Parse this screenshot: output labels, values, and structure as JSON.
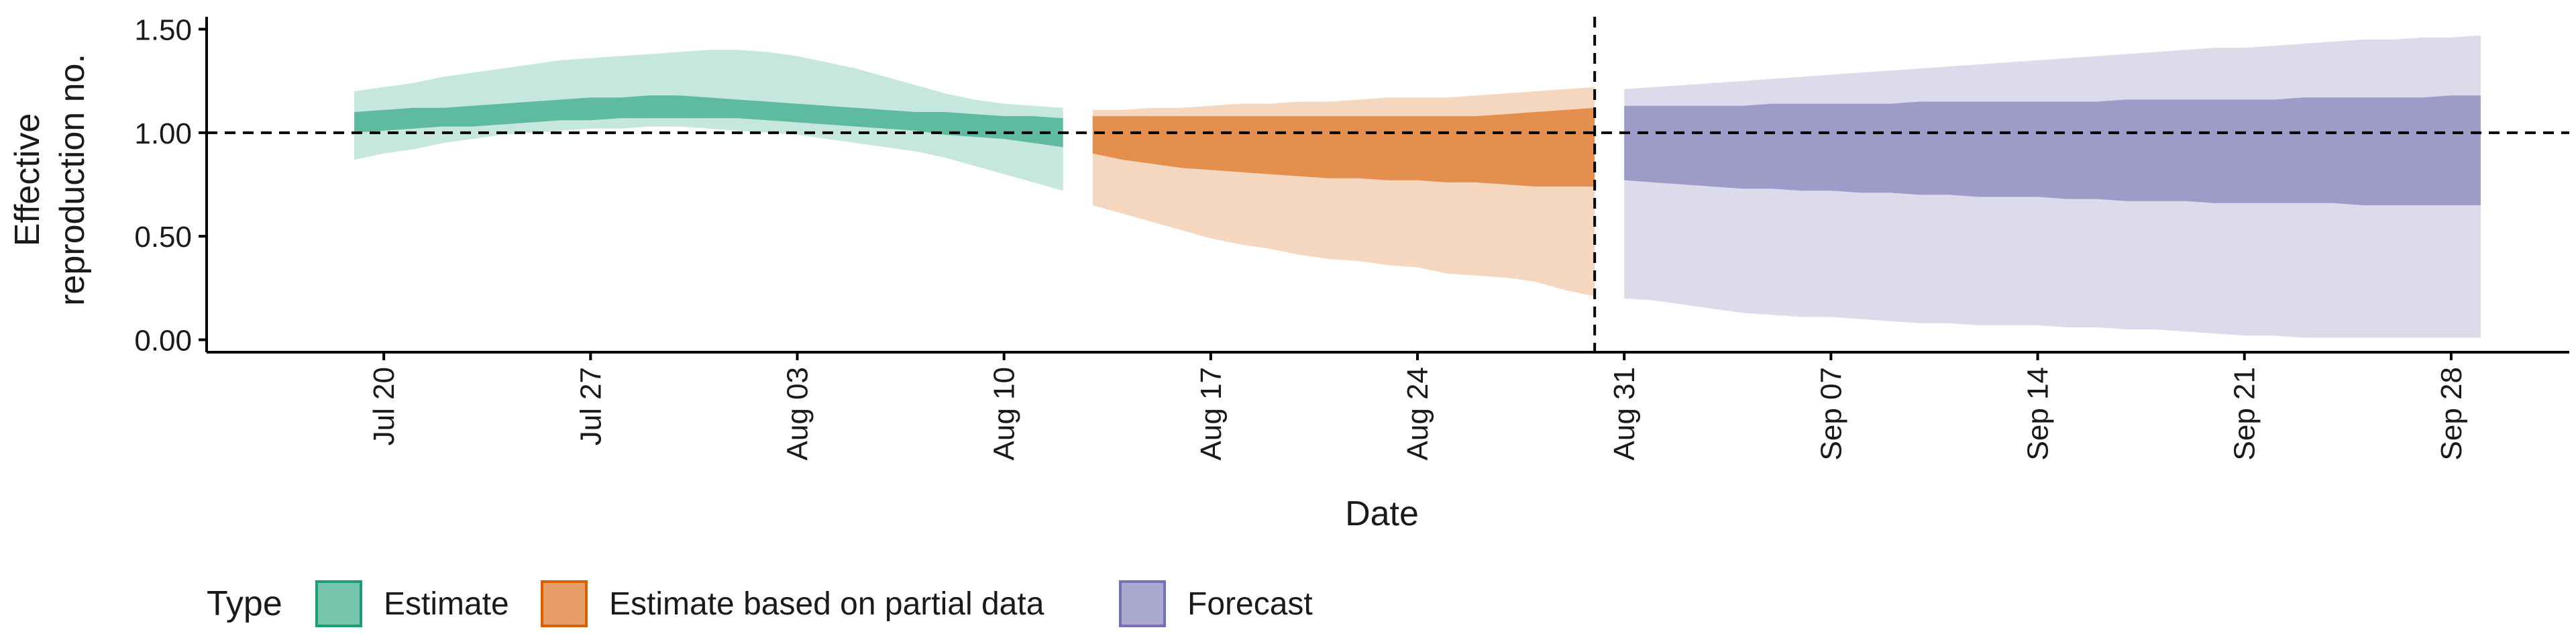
{
  "chart_data": {
    "type": "area",
    "xlabel": "Date",
    "ylabel_lines": [
      "Effective",
      "reproduction no."
    ],
    "x_range": [
      "2020-07-14",
      "2020-10-02"
    ],
    "ylim": [
      -0.06,
      1.56
    ],
    "y_ticks": [
      {
        "value": 0.0,
        "label": "0.00"
      },
      {
        "value": 0.5,
        "label": "0.50"
      },
      {
        "value": 1.0,
        "label": "1.00"
      },
      {
        "value": 1.5,
        "label": "1.50"
      }
    ],
    "x_ticks": [
      {
        "date": "2020-07-20",
        "label": "Jul 20"
      },
      {
        "date": "2020-07-27",
        "label": "Jul 27"
      },
      {
        "date": "2020-08-03",
        "label": "Aug 03"
      },
      {
        "date": "2020-08-10",
        "label": "Aug 10"
      },
      {
        "date": "2020-08-17",
        "label": "Aug 17"
      },
      {
        "date": "2020-08-24",
        "label": "Aug 24"
      },
      {
        "date": "2020-08-31",
        "label": "Aug 31"
      },
      {
        "date": "2020-09-07",
        "label": "Sep 07"
      },
      {
        "date": "2020-09-14",
        "label": "Sep 14"
      },
      {
        "date": "2020-09-21",
        "label": "Sep 21"
      },
      {
        "date": "2020-09-28",
        "label": "Sep 28"
      }
    ],
    "reference_line_y": 1.0,
    "reference_line_date": "2020-08-30",
    "legend": {
      "title": "Type",
      "position": "bottom-left"
    },
    "series": [
      {
        "name": "Estimate",
        "fill": "#1b9e77",
        "dates": [
          "2020-07-19",
          "2020-07-20",
          "2020-07-21",
          "2020-07-22",
          "2020-07-23",
          "2020-07-24",
          "2020-07-25",
          "2020-07-26",
          "2020-07-27",
          "2020-07-28",
          "2020-07-29",
          "2020-07-30",
          "2020-07-31",
          "2020-08-01",
          "2020-08-02",
          "2020-08-03",
          "2020-08-04",
          "2020-08-05",
          "2020-08-06",
          "2020-08-07",
          "2020-08-08",
          "2020-08-09",
          "2020-08-10",
          "2020-08-11",
          "2020-08-12"
        ],
        "lower90": [
          0.87,
          0.9,
          0.92,
          0.95,
          0.97,
          0.99,
          1.0,
          1.01,
          1.02,
          1.02,
          1.03,
          1.03,
          1.02,
          1.01,
          1.0,
          0.99,
          0.97,
          0.95,
          0.93,
          0.91,
          0.88,
          0.84,
          0.8,
          0.76,
          0.72
        ],
        "lower50": [
          1.0,
          1.01,
          1.02,
          1.03,
          1.03,
          1.04,
          1.05,
          1.06,
          1.06,
          1.07,
          1.07,
          1.07,
          1.07,
          1.07,
          1.06,
          1.05,
          1.04,
          1.03,
          1.02,
          1.01,
          0.99,
          0.98,
          0.97,
          0.95,
          0.93
        ],
        "upper50": [
          1.1,
          1.11,
          1.12,
          1.12,
          1.13,
          1.14,
          1.15,
          1.16,
          1.17,
          1.17,
          1.18,
          1.18,
          1.17,
          1.16,
          1.15,
          1.14,
          1.13,
          1.12,
          1.11,
          1.1,
          1.1,
          1.09,
          1.08,
          1.08,
          1.07
        ],
        "upper90": [
          1.2,
          1.22,
          1.24,
          1.27,
          1.29,
          1.31,
          1.33,
          1.35,
          1.36,
          1.37,
          1.38,
          1.39,
          1.4,
          1.4,
          1.39,
          1.37,
          1.34,
          1.31,
          1.27,
          1.23,
          1.19,
          1.16,
          1.14,
          1.13,
          1.12
        ]
      },
      {
        "name": "Estimate based on partial data",
        "fill": "#d95f02",
        "dates": [
          "2020-08-13",
          "2020-08-14",
          "2020-08-15",
          "2020-08-16",
          "2020-08-17",
          "2020-08-18",
          "2020-08-19",
          "2020-08-20",
          "2020-08-21",
          "2020-08-22",
          "2020-08-23",
          "2020-08-24",
          "2020-08-25",
          "2020-08-26",
          "2020-08-27",
          "2020-08-28",
          "2020-08-29",
          "2020-08-30"
        ],
        "lower90": [
          0.65,
          0.61,
          0.57,
          0.53,
          0.49,
          0.46,
          0.44,
          0.41,
          0.39,
          0.38,
          0.36,
          0.35,
          0.32,
          0.31,
          0.3,
          0.28,
          0.24,
          0.21
        ],
        "lower50": [
          0.9,
          0.87,
          0.85,
          0.83,
          0.82,
          0.81,
          0.8,
          0.79,
          0.78,
          0.78,
          0.77,
          0.77,
          0.76,
          0.76,
          0.75,
          0.74,
          0.74,
          0.74
        ],
        "upper50": [
          1.08,
          1.08,
          1.08,
          1.08,
          1.08,
          1.08,
          1.08,
          1.08,
          1.08,
          1.08,
          1.08,
          1.08,
          1.08,
          1.08,
          1.09,
          1.1,
          1.11,
          1.12
        ],
        "upper90": [
          1.11,
          1.11,
          1.12,
          1.12,
          1.13,
          1.14,
          1.14,
          1.15,
          1.15,
          1.16,
          1.17,
          1.17,
          1.17,
          1.18,
          1.19,
          1.2,
          1.21,
          1.22
        ]
      },
      {
        "name": "Forecast",
        "fill": "#7570b3",
        "dates": [
          "2020-08-31",
          "2020-09-01",
          "2020-09-02",
          "2020-09-03",
          "2020-09-04",
          "2020-09-05",
          "2020-09-06",
          "2020-09-07",
          "2020-09-08",
          "2020-09-09",
          "2020-09-10",
          "2020-09-11",
          "2020-09-12",
          "2020-09-13",
          "2020-09-14",
          "2020-09-15",
          "2020-09-16",
          "2020-09-17",
          "2020-09-18",
          "2020-09-19",
          "2020-09-20",
          "2020-09-21",
          "2020-09-22",
          "2020-09-23",
          "2020-09-24",
          "2020-09-25",
          "2020-09-26",
          "2020-09-27",
          "2020-09-28",
          "2020-09-29"
        ],
        "lower90": [
          0.2,
          0.19,
          0.17,
          0.15,
          0.13,
          0.12,
          0.11,
          0.11,
          0.1,
          0.09,
          0.08,
          0.08,
          0.07,
          0.07,
          0.07,
          0.06,
          0.06,
          0.05,
          0.05,
          0.04,
          0.03,
          0.02,
          0.02,
          0.01,
          0.01,
          0.01,
          0.01,
          0.01,
          0.01,
          0.01
        ],
        "lower50": [
          0.77,
          0.76,
          0.75,
          0.74,
          0.73,
          0.73,
          0.72,
          0.72,
          0.71,
          0.71,
          0.7,
          0.7,
          0.69,
          0.69,
          0.69,
          0.68,
          0.68,
          0.67,
          0.67,
          0.67,
          0.66,
          0.66,
          0.66,
          0.66,
          0.66,
          0.65,
          0.65,
          0.65,
          0.65,
          0.65
        ],
        "upper50": [
          1.13,
          1.13,
          1.13,
          1.13,
          1.13,
          1.14,
          1.14,
          1.14,
          1.14,
          1.14,
          1.15,
          1.15,
          1.15,
          1.15,
          1.15,
          1.15,
          1.15,
          1.16,
          1.16,
          1.16,
          1.16,
          1.16,
          1.16,
          1.17,
          1.17,
          1.17,
          1.17,
          1.17,
          1.18,
          1.18
        ],
        "upper90": [
          1.21,
          1.22,
          1.23,
          1.24,
          1.25,
          1.26,
          1.27,
          1.28,
          1.29,
          1.3,
          1.31,
          1.32,
          1.33,
          1.34,
          1.35,
          1.36,
          1.37,
          1.38,
          1.39,
          1.4,
          1.41,
          1.41,
          1.42,
          1.43,
          1.44,
          1.45,
          1.45,
          1.46,
          1.46,
          1.47
        ]
      }
    ]
  }
}
